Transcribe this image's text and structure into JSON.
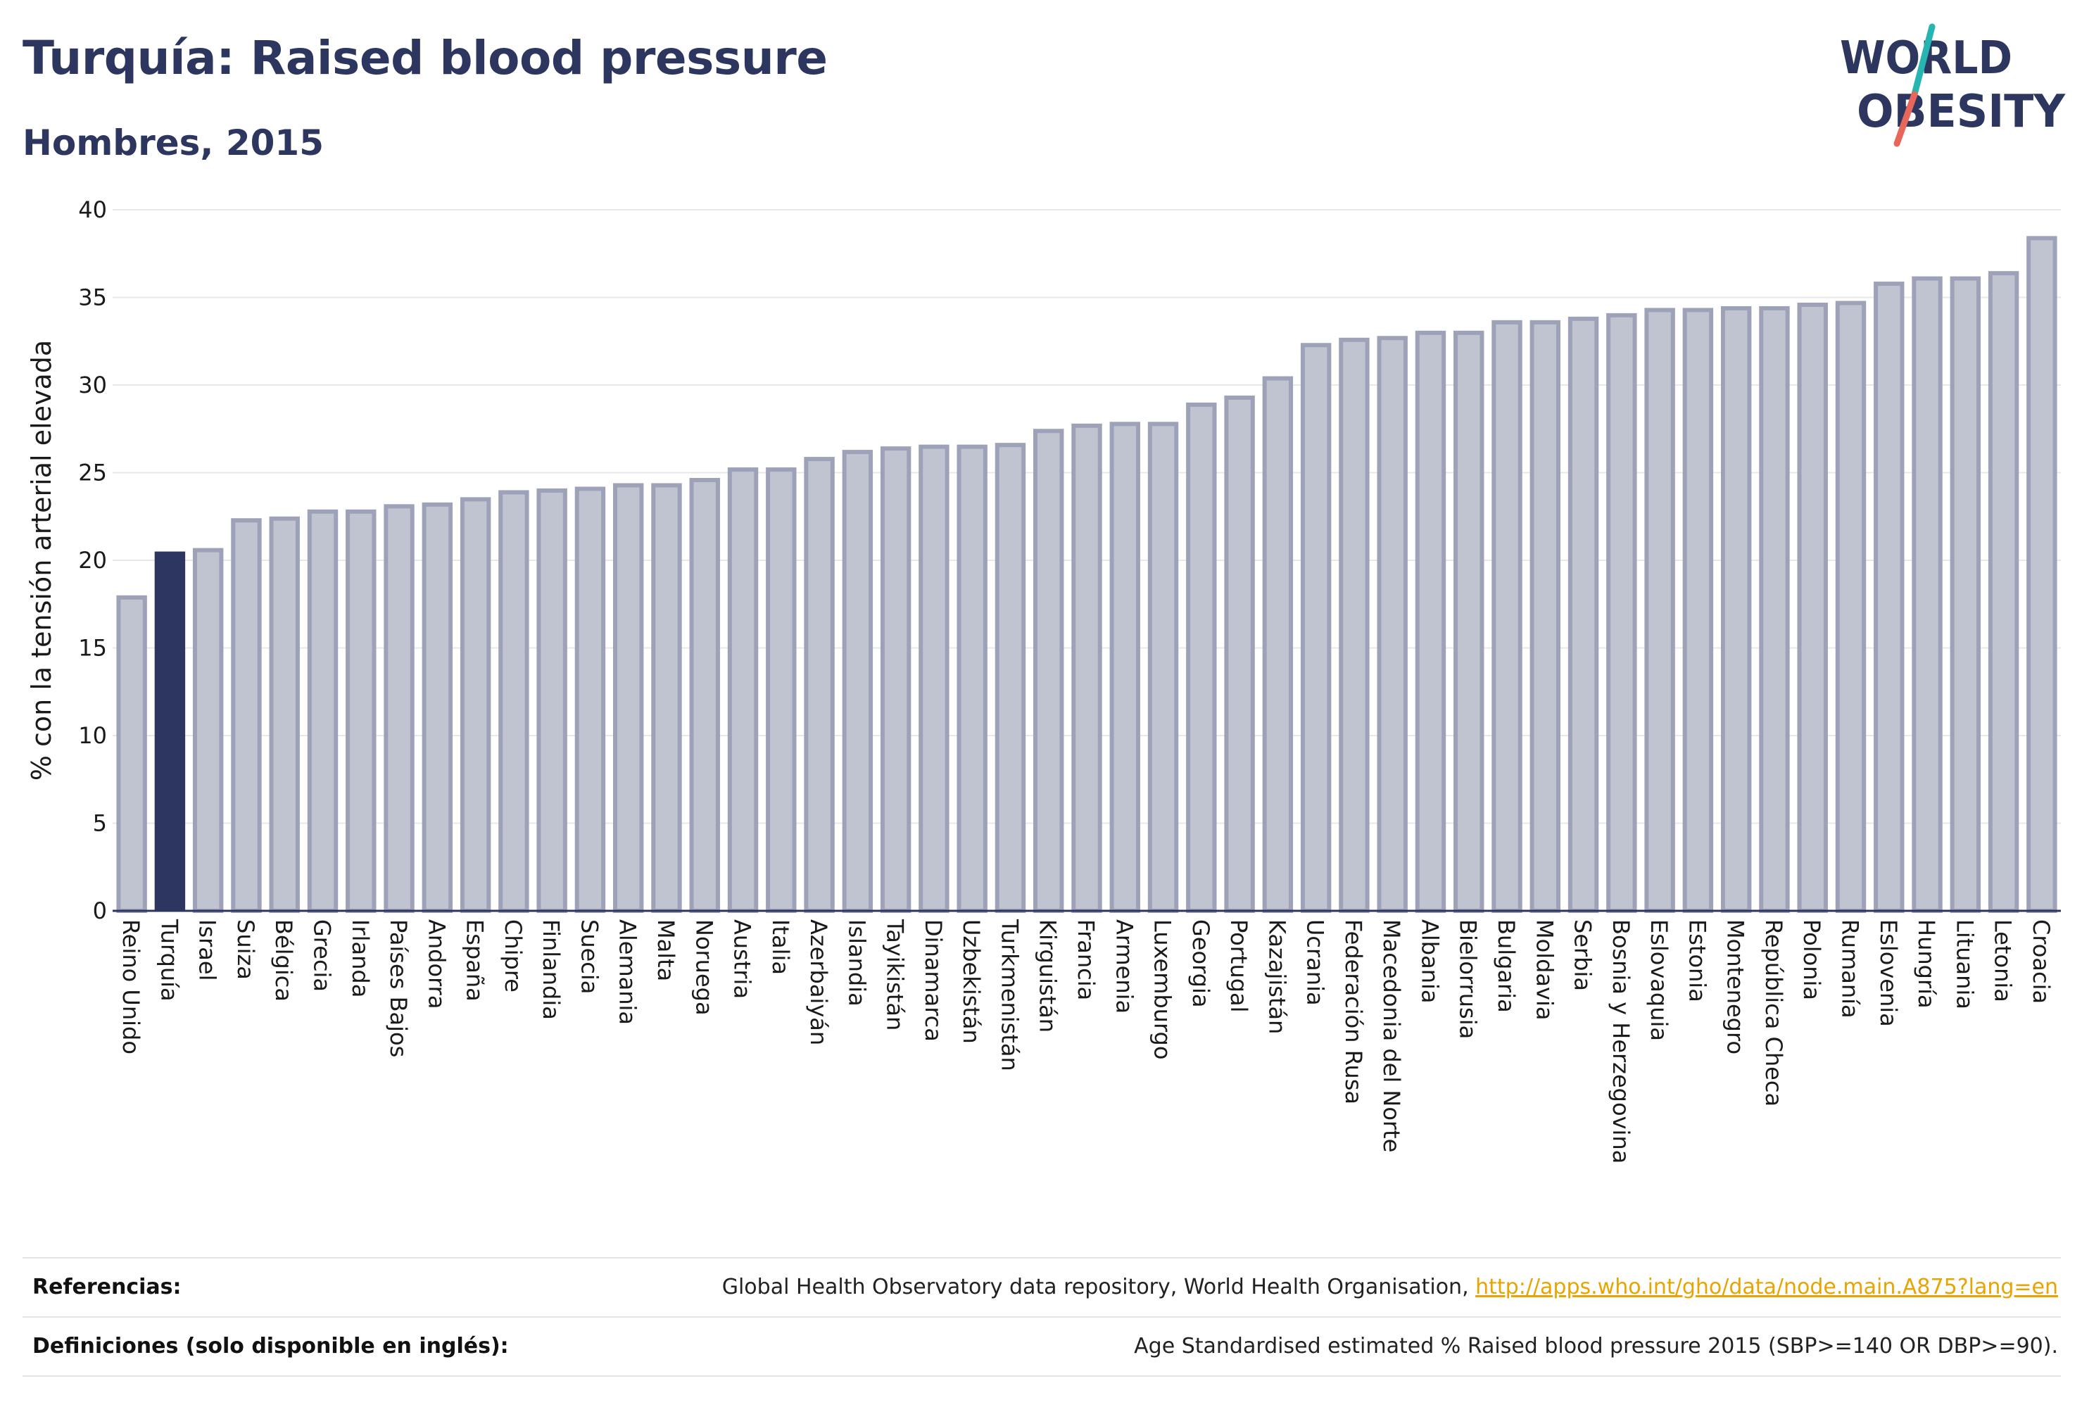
{
  "header": {
    "title": "Turquía: Raised blood pressure",
    "subtitle": "Hombres, 2015"
  },
  "logo": {
    "line1": "WORLD",
    "line2": "OBESITY",
    "colors": {
      "text": "#2c365e",
      "slash_teal": "#27b5b2",
      "slash_coral": "#e8675a"
    }
  },
  "chart_data": {
    "type": "bar",
    "ylabel": "% con la tensión arterial elevada",
    "xlabel": "",
    "ylim": [
      0,
      40
    ],
    "yticks": [
      0,
      5,
      10,
      15,
      20,
      25,
      30,
      35,
      40
    ],
    "grid": true,
    "highlight": "Turquía",
    "colors": {
      "bar": "#c0c3d0",
      "bar_border": "#9ea2b8",
      "highlight": "#2c365e",
      "grid": "#e8e8e8",
      "axis": "#2c365e"
    },
    "categories": [
      "Reino Unido",
      "Turquía",
      "Israel",
      "Suiza",
      "Bélgica",
      "Grecia",
      "Irlanda",
      "Países Bajos",
      "Andorra",
      "España",
      "Chipre",
      "Finlandia",
      "Suecia",
      "Alemania",
      "Malta",
      "Noruega",
      "Austria",
      "Italia",
      "Azerbaiyán",
      "Islandia",
      "Tayikistán",
      "Dinamarca",
      "Uzbekistán",
      "Turkmenistán",
      "Kirguistán",
      "Francia",
      "Armenia",
      "Luxemburgo",
      "Georgia",
      "Portugal",
      "Kazajistán",
      "Ucrania",
      "Federación Rusa",
      "Macedonia del Norte",
      "Albania",
      "Bielorrusia",
      "Bulgaria",
      "Moldavia",
      "Serbia",
      "Bosnia y Herzegovina",
      "Eslovaquia",
      "Estonia",
      "Montenegro",
      "República Checa",
      "Polonia",
      "Rumanía",
      "Eslovenia",
      "Hungría",
      "Lituania",
      "Letonia",
      "Croacia"
    ],
    "values": [
      18.0,
      20.5,
      20.7,
      22.4,
      22.5,
      22.9,
      22.9,
      23.2,
      23.3,
      23.6,
      24.0,
      24.1,
      24.2,
      24.4,
      24.4,
      24.7,
      25.3,
      25.3,
      25.9,
      26.3,
      26.5,
      26.6,
      26.6,
      26.7,
      27.5,
      27.8,
      27.9,
      27.9,
      29.0,
      29.4,
      30.5,
      32.4,
      32.7,
      32.8,
      33.1,
      33.1,
      33.7,
      33.7,
      33.9,
      34.1,
      34.4,
      34.4,
      34.5,
      34.5,
      34.7,
      34.8,
      35.9,
      36.2,
      36.2,
      36.5,
      38.5
    ]
  },
  "footer": {
    "references_label": "Referencias:",
    "references_text": "Global Health Observatory data repository, World Health Organisation, ",
    "references_link": "http://apps.who.int/gho/data/node.main.A875?lang=en",
    "definitions_label": "Definiciones (solo disponible en inglés):",
    "definitions_text": "Age Standardised estimated % Raised blood pressure 2015 (SBP>=140 OR DBP>=90)."
  }
}
